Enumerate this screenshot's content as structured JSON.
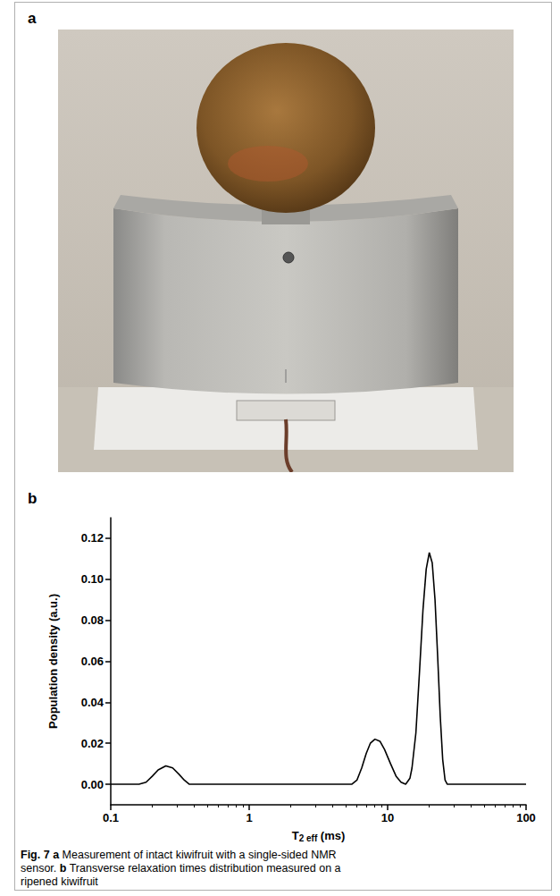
{
  "panel_labels": [
    "a",
    "b"
  ],
  "caption": {
    "label": "Fig. 7",
    "parts": [
      {
        "letter": "a",
        "text": "Measurement of intact kiwifruit with a single-sided NMR sensor."
      },
      {
        "letter": "b",
        "text": "Transverse relaxation times distribution measured on a ripened kiwifruit"
      }
    ]
  },
  "chart_data": {
    "type": "line",
    "xlabel": {
      "main": "T",
      "sub": "2 eff",
      "rest": " (ms)"
    },
    "ylabel": "Population density (a.u.)",
    "log": "x",
    "grid": false,
    "color": "#000000",
    "x": [
      0.1,
      0.16,
      0.18,
      0.2,
      0.22,
      0.25,
      0.28,
      0.31,
      0.34,
      0.37,
      5.5,
      6,
      6.5,
      7,
      7.5,
      8.1,
      8.8,
      9.5,
      10.5,
      11.5,
      12.5,
      13.5,
      14.5,
      15,
      16,
      17,
      18,
      19,
      20,
      21,
      22,
      23,
      24,
      25,
      26,
      27,
      100
    ],
    "values": [
      0,
      0,
      0.001,
      0.004,
      0.007,
      0.009,
      0.008,
      0.005,
      0.002,
      0,
      0,
      0.002,
      0.008,
      0.015,
      0.02,
      0.022,
      0.021,
      0.017,
      0.01,
      0.004,
      0.001,
      0,
      0.003,
      0.008,
      0.025,
      0.055,
      0.085,
      0.105,
      0.113,
      0.108,
      0.09,
      0.062,
      0.033,
      0.012,
      0.002,
      0,
      0
    ],
    "xlim": [
      0.1,
      100
    ],
    "xticks": [
      0.1,
      1,
      10,
      100
    ],
    "ylim": [
      -0.01,
      0.13
    ],
    "yticks": [
      {
        "value": 0,
        "label": "0.00"
      },
      {
        "value": 0.02,
        "label": "0.02"
      },
      {
        "value": 0.04,
        "label": "0.04"
      },
      {
        "value": 0.06,
        "label": "0.06"
      },
      {
        "value": 0.08,
        "label": "0.08"
      },
      {
        "value": 0.1,
        "label": "0.10"
      },
      {
        "value": 0.12,
        "label": "0.12"
      }
    ]
  }
}
